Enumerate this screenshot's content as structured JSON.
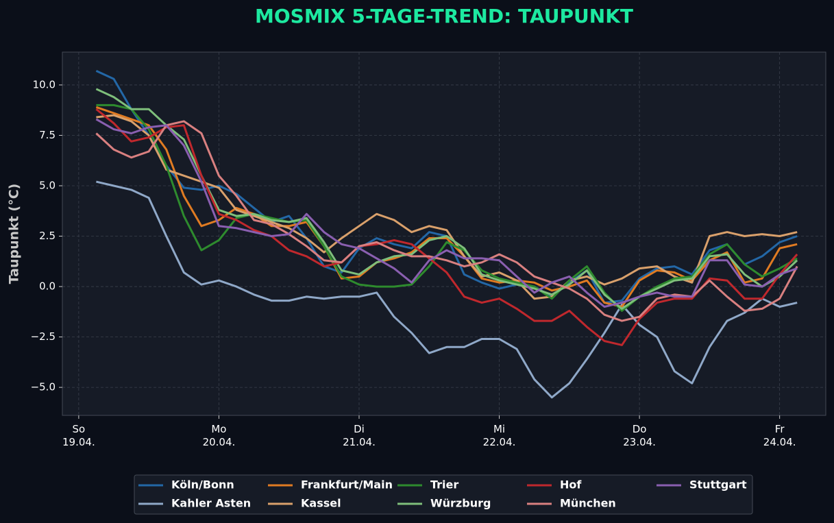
{
  "chart_data": {
    "type": "line",
    "title": "MOSMIX 5-TAGE-TREND: TAUPUNKT",
    "y_label": "Taupunkt (°C)",
    "x": [
      3,
      6,
      9,
      12,
      15,
      18,
      21,
      24,
      27,
      30,
      33,
      36,
      39,
      42,
      45,
      48,
      51,
      54,
      57,
      60,
      63,
      66,
      69,
      72,
      75,
      78,
      81,
      84,
      87,
      90,
      93,
      96,
      99,
      102,
      105,
      108,
      111,
      114,
      117,
      120,
      123
    ],
    "xlim": [
      -2.8,
      127.9
    ],
    "xticks": [
      {
        "value": 0,
        "label": "So\n19.04."
      },
      {
        "value": 24,
        "label": "Mo\n20.04."
      },
      {
        "value": 48,
        "label": "Di\n21.04."
      },
      {
        "value": 72,
        "label": "Mi\n22.04."
      },
      {
        "value": 96,
        "label": "Do\n23.04."
      },
      {
        "value": 120,
        "label": "Fr\n24.04."
      }
    ],
    "ylim": [
      -6.39,
      11.63
    ],
    "yticks": [
      {
        "value": -5,
        "label": "−5.0"
      },
      {
        "value": -2.5,
        "label": "−2.5"
      },
      {
        "value": 0,
        "label": "0.0"
      },
      {
        "value": 2.5,
        "label": "2.5"
      },
      {
        "value": 5,
        "label": "5.0"
      },
      {
        "value": 7.5,
        "label": "7.5"
      },
      {
        "value": 10,
        "label": "10.0"
      }
    ],
    "grid": true,
    "legend": "lower center",
    "series": [
      {
        "name": "Köln/Bonn",
        "color": "#2367a6",
        "values": [
          10.7,
          10.3,
          8.8,
          7.5,
          6.0,
          4.9,
          4.8,
          5.0,
          4.6,
          3.9,
          3.2,
          3.5,
          2.4,
          1.0,
          0.7,
          1.9,
          2.4,
          2.1,
          1.9,
          2.7,
          2.5,
          0.6,
          0.2,
          -0.1,
          0.1,
          0.0,
          -0.5,
          0.2,
          0.8,
          -0.8,
          -0.7,
          0.4,
          0.9,
          1.0,
          0.6,
          1.8,
          2.1,
          1.1,
          1.5,
          2.2,
          2.5
        ]
      },
      {
        "name": "Kahler Asten",
        "color": "#8fa8c8",
        "values": [
          5.2,
          5.0,
          4.8,
          4.4,
          2.5,
          0.7,
          0.1,
          0.3,
          0.0,
          -0.4,
          -0.7,
          -0.7,
          -0.5,
          -0.6,
          -0.5,
          -0.5,
          -0.3,
          -1.5,
          -2.3,
          -3.3,
          -3.0,
          -3.0,
          -2.6,
          -2.6,
          -3.1,
          -4.6,
          -5.5,
          -4.8,
          -3.6,
          -2.3,
          -0.9,
          -1.9,
          -2.5,
          -4.2,
          -4.8,
          -3.0,
          -1.7,
          -1.3,
          -0.6,
          -1.0,
          -0.8
        ]
      },
      {
        "name": "Frankfurt/Main",
        "color": "#e07b22",
        "values": [
          8.9,
          8.6,
          8.3,
          8.0,
          6.8,
          4.5,
          3.0,
          3.3,
          3.9,
          3.6,
          3.0,
          3.0,
          3.2,
          2.0,
          0.4,
          0.5,
          1.2,
          1.4,
          1.7,
          2.4,
          2.4,
          1.5,
          0.4,
          0.2,
          0.3,
          0.2,
          -0.2,
          0.0,
          0.3,
          -0.8,
          -1.0,
          0.3,
          0.8,
          0.7,
          0.3,
          1.3,
          1.7,
          0.2,
          0.4,
          1.9,
          2.1
        ]
      },
      {
        "name": "Kassel",
        "color": "#d9a06b",
        "values": [
          8.4,
          8.5,
          8.2,
          7.5,
          5.8,
          5.5,
          5.2,
          4.9,
          3.8,
          3.5,
          3.2,
          2.9,
          2.4,
          1.7,
          2.4,
          3.0,
          3.6,
          3.3,
          2.7,
          3.0,
          2.8,
          1.5,
          0.5,
          0.7,
          0.3,
          -0.6,
          -0.5,
          0.3,
          0.5,
          0.1,
          0.4,
          0.9,
          1.0,
          0.5,
          0.2,
          2.5,
          2.7,
          2.5,
          2.6,
          2.5,
          2.7
        ]
      },
      {
        "name": "Trier",
        "color": "#2e8b2e",
        "values": [
          9.0,
          9.0,
          8.8,
          7.8,
          6.0,
          3.5,
          1.8,
          2.3,
          3.4,
          3.6,
          3.4,
          3.2,
          3.3,
          2.0,
          0.5,
          0.1,
          0.0,
          0.0,
          0.1,
          1.0,
          2.2,
          1.8,
          0.8,
          0.4,
          0.2,
          0.0,
          -0.6,
          0.3,
          1.0,
          -0.3,
          -1.2,
          -0.5,
          0.0,
          0.4,
          0.5,
          1.6,
          2.1,
          1.1,
          0.5,
          0.9,
          1.4
        ]
      },
      {
        "name": "Würzburg",
        "color": "#7fbf7b",
        "values": [
          9.8,
          9.4,
          8.8,
          8.8,
          8.0,
          7.3,
          5.5,
          3.8,
          3.5,
          3.6,
          3.3,
          3.2,
          3.4,
          2.2,
          0.8,
          0.6,
          1.2,
          1.5,
          1.6,
          2.3,
          2.5,
          1.9,
          0.6,
          0.3,
          0.1,
          -0.1,
          -0.4,
          0.1,
          0.8,
          -0.4,
          -1.1,
          -0.5,
          -0.1,
          0.3,
          0.4,
          1.5,
          1.6,
          0.6,
          0.0,
          0.5,
          1.3
        ]
      },
      {
        "name": "Hof",
        "color": "#c0282d",
        "values": [
          8.8,
          8.1,
          7.2,
          7.4,
          7.9,
          8.0,
          5.5,
          3.6,
          3.3,
          2.8,
          2.5,
          1.8,
          1.5,
          1.0,
          1.2,
          2.0,
          2.1,
          2.3,
          2.1,
          1.4,
          0.7,
          -0.5,
          -0.8,
          -0.6,
          -1.1,
          -1.7,
          -1.7,
          -1.2,
          -2.0,
          -2.7,
          -2.9,
          -1.6,
          -0.8,
          -0.6,
          -0.6,
          0.4,
          0.3,
          -0.6,
          -0.6,
          0.6,
          1.6
        ]
      },
      {
        "name": "München",
        "color": "#d98080",
        "values": [
          7.6,
          6.8,
          6.4,
          6.7,
          8.0,
          8.2,
          7.6,
          5.5,
          4.5,
          3.3,
          3.1,
          2.6,
          2.0,
          1.3,
          1.2,
          2.0,
          2.2,
          1.8,
          1.5,
          1.5,
          1.3,
          1.0,
          1.2,
          1.6,
          1.2,
          0.5,
          0.2,
          -0.1,
          -0.6,
          -1.4,
          -1.7,
          -1.5,
          -0.6,
          -0.4,
          -0.5,
          0.3,
          -0.5,
          -1.2,
          -1.1,
          -0.6,
          1.0
        ]
      },
      {
        "name": "Stuttgart",
        "color": "#8a5fb0",
        "values": [
          8.3,
          7.8,
          7.6,
          7.9,
          8.0,
          7.0,
          5.2,
          3.0,
          2.9,
          2.7,
          2.5,
          2.6,
          3.6,
          2.7,
          2.1,
          1.9,
          1.4,
          0.9,
          0.2,
          1.3,
          1.8,
          1.4,
          1.4,
          1.3,
          0.5,
          -0.3,
          0.2,
          0.5,
          -0.3,
          -1.0,
          -0.8,
          -0.5,
          -0.3,
          -0.5,
          -0.5,
          1.3,
          1.3,
          0.1,
          0.0,
          0.6,
          0.9
        ]
      }
    ]
  }
}
